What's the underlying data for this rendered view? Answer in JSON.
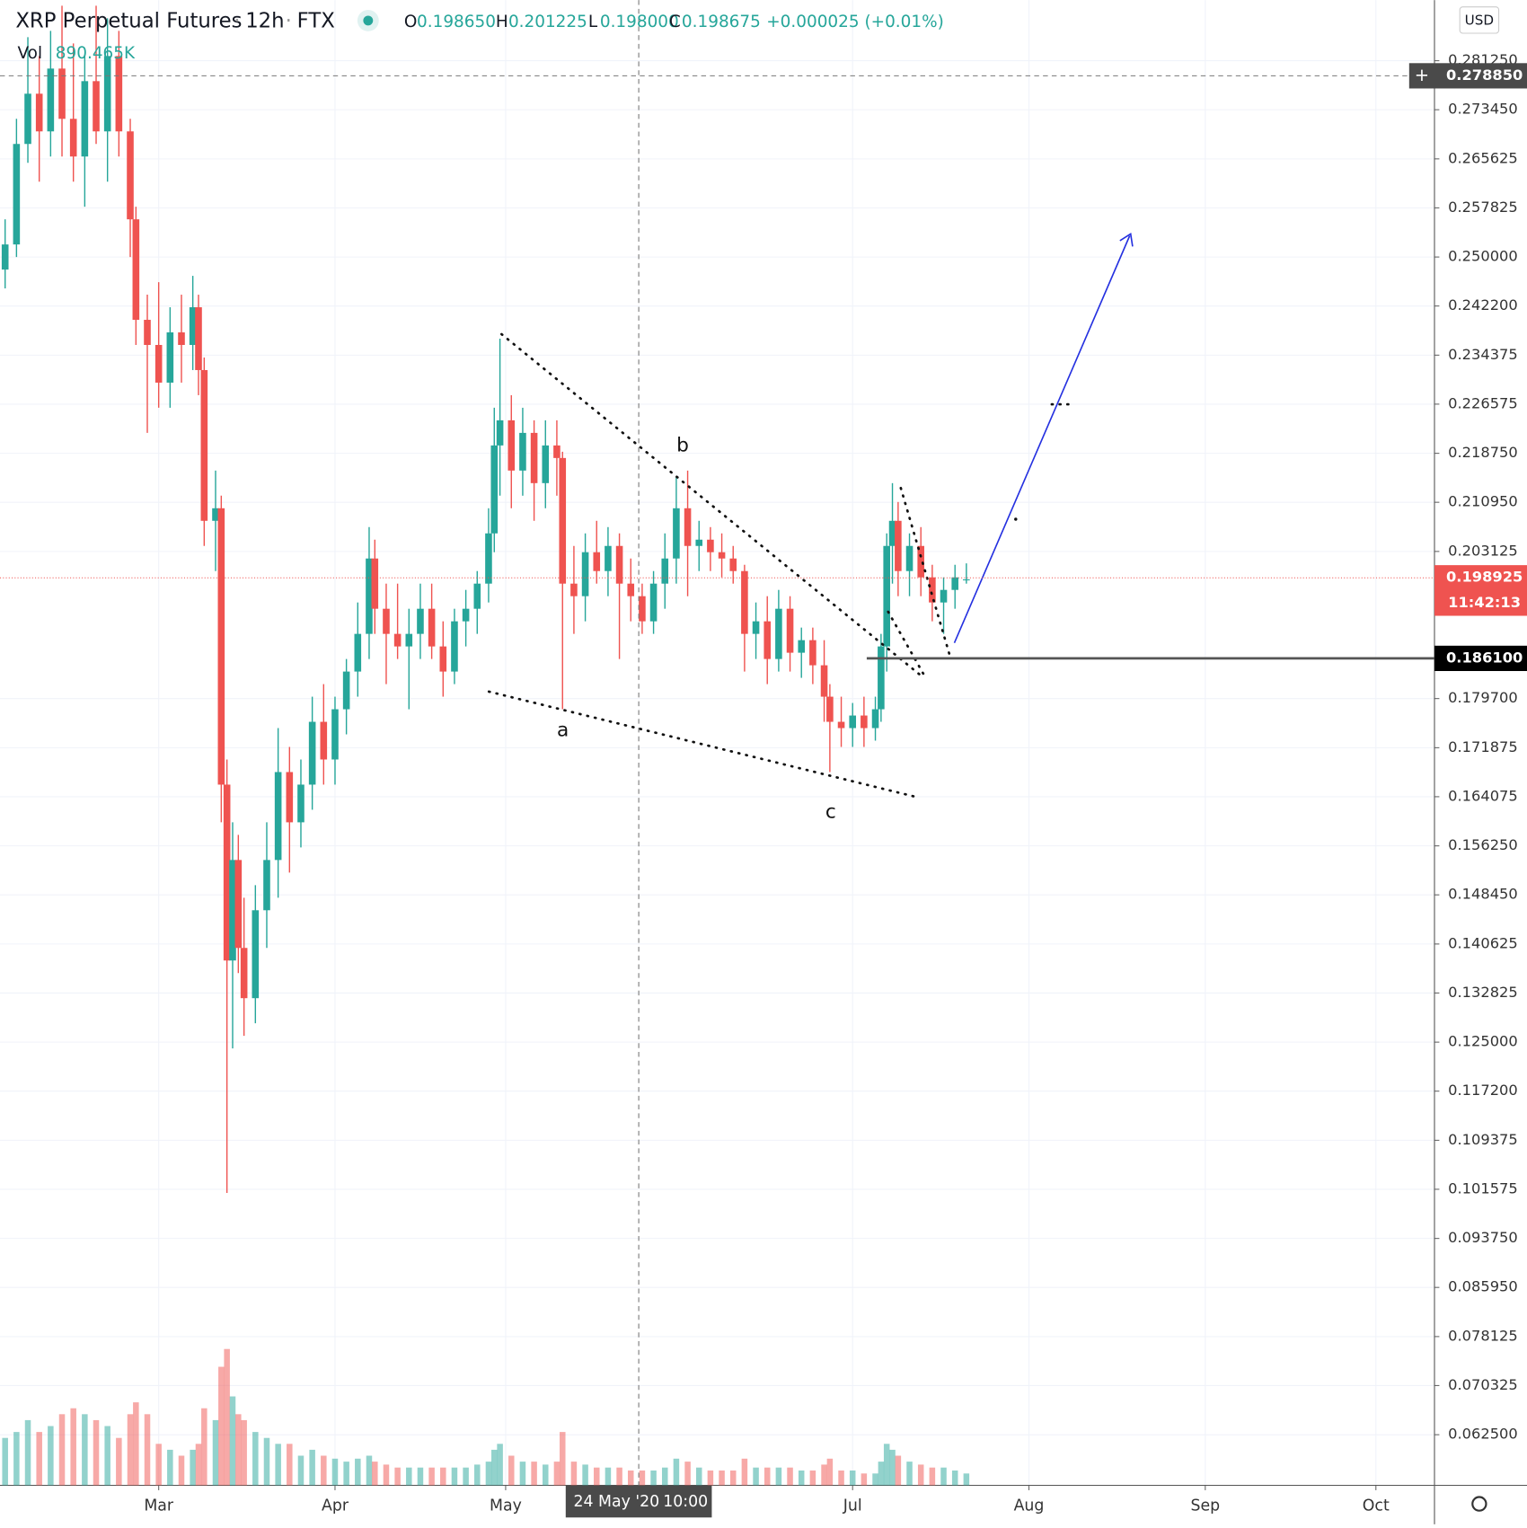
{
  "chart_data": {
    "type": "candlestick",
    "title": "XRP Perpetual Futures",
    "interval": "12h",
    "exchange": "FTX",
    "ohlc": [
      {
        "label": "O",
        "value": "0.198650"
      },
      {
        "label": "H",
        "value": "0.201225"
      },
      {
        "label": "L",
        "value": "0.198000"
      },
      {
        "label": "C",
        "value": "0.198675"
      }
    ],
    "change": "+0.000025 (+0.01%)",
    "volume_label": "Vol",
    "volume_value": "890.465K",
    "currency": "USD",
    "up_color": "#26a69a",
    "down_color": "#ef5350",
    "grid": true,
    "xlim": [
      33.1,
      285.3
    ],
    "xticks": [
      {
        "value": 61,
        "label": "Mar"
      },
      {
        "value": 92,
        "label": "Apr"
      },
      {
        "value": 122,
        "label": "May"
      },
      {
        "value": 183,
        "label": "Jul"
      },
      {
        "value": 214,
        "label": "Aug"
      },
      {
        "value": 245,
        "label": "Sep"
      },
      {
        "value": 275,
        "label": "Oct"
      }
    ],
    "ylim": [
      0.05444,
      0.2909
    ],
    "yticks": [
      {
        "value": 0.0625,
        "label": "0.062500"
      },
      {
        "value": 0.070325,
        "label": "0.070325"
      },
      {
        "value": 0.078125,
        "label": "0.078125"
      },
      {
        "value": 0.08595,
        "label": "0.085950"
      },
      {
        "value": 0.09375,
        "label": "0.093750"
      },
      {
        "value": 0.101575,
        "label": "0.101575"
      },
      {
        "value": 0.109375,
        "label": "0.109375"
      },
      {
        "value": 0.1172,
        "label": "0.117200"
      },
      {
        "value": 0.125,
        "label": "0.125000"
      },
      {
        "value": 0.132825,
        "label": "0.132825"
      },
      {
        "value": 0.140625,
        "label": "0.140625"
      },
      {
        "value": 0.14845,
        "label": "0.148450"
      },
      {
        "value": 0.15625,
        "label": "0.156250"
      },
      {
        "value": 0.164075,
        "label": "0.164075"
      },
      {
        "value": 0.171875,
        "label": "0.171875"
      },
      {
        "value": 0.1797,
        "label": "0.179700"
      },
      {
        "value": 0.203125,
        "label": "0.203125"
      },
      {
        "value": 0.21095,
        "label": "0.210950"
      },
      {
        "value": 0.21875,
        "label": "0.218750"
      },
      {
        "value": 0.226575,
        "label": "0.226575"
      },
      {
        "value": 0.234375,
        "label": "0.234375"
      },
      {
        "value": 0.2422,
        "label": "0.242200"
      },
      {
        "value": 0.25,
        "label": "0.250000"
      },
      {
        "value": 0.257825,
        "label": "0.257825"
      },
      {
        "value": 0.265625,
        "label": "0.265625"
      },
      {
        "value": 0.27345,
        "label": "0.273450"
      },
      {
        "value": 0.28125,
        "label": "0.281250"
      }
    ],
    "crosshair": {
      "x": 145.4,
      "date_label": "24 May '20",
      "time_label": "10:00",
      "y": 0.27885,
      "y_label": "0.278850"
    },
    "last_price": {
      "value": 0.198925,
      "label": "0.198925",
      "countdown": "11:42:13"
    },
    "level": {
      "value": 0.1861,
      "label": "0.186100"
    },
    "annotations": [
      "a",
      "b",
      "c"
    ],
    "x": [
      34,
      36,
      38,
      40,
      42,
      44,
      46,
      48,
      50,
      52,
      54,
      56,
      57,
      59,
      61,
      63,
      65,
      67,
      68,
      69,
      71,
      72,
      73,
      74,
      75,
      76,
      78,
      80,
      82,
      84,
      86,
      88,
      90,
      92,
      94,
      96,
      98,
      99,
      101,
      103,
      105,
      107,
      109,
      111,
      113,
      115,
      117,
      119,
      120,
      121,
      123,
      125,
      127,
      129,
      131,
      132,
      134,
      136,
      138,
      140,
      142,
      144,
      146,
      148,
      150,
      152,
      154,
      156,
      158,
      160,
      162,
      164,
      166,
      168,
      170,
      172,
      174,
      176,
      178,
      179,
      181,
      183,
      185,
      187,
      188,
      189,
      190,
      191,
      193,
      195,
      197,
      199,
      201,
      203
    ],
    "open": [
      0.248,
      0.252,
      0.268,
      0.276,
      0.27,
      0.28,
      0.272,
      0.266,
      0.278,
      0.27,
      0.282,
      0.27,
      0.256,
      0.24,
      0.236,
      0.23,
      0.238,
      0.236,
      0.242,
      0.232,
      0.208,
      0.21,
      0.166,
      0.138,
      0.154,
      0.14,
      0.132,
      0.146,
      0.154,
      0.168,
      0.16,
      0.166,
      0.176,
      0.17,
      0.178,
      0.184,
      0.19,
      0.202,
      0.194,
      0.19,
      0.188,
      0.19,
      0.194,
      0.188,
      0.184,
      0.192,
      0.194,
      0.198,
      0.206,
      0.22,
      0.224,
      0.216,
      0.222,
      0.214,
      0.22,
      0.218,
      0.198,
      0.196,
      0.203,
      0.2,
      0.204,
      0.198,
      0.196,
      0.192,
      0.198,
      0.202,
      0.21,
      0.204,
      0.205,
      0.203,
      0.202,
      0.2,
      0.19,
      0.192,
      0.186,
      0.194,
      0.187,
      0.189,
      0.185,
      0.18,
      0.176,
      0.175,
      0.177,
      0.175,
      0.178,
      0.188,
      0.204,
      0.208,
      0.2,
      0.204,
      0.199,
      0.195,
      0.197,
      0.19865
    ],
    "high": [
      0.256,
      0.272,
      0.285,
      0.282,
      0.286,
      0.29,
      0.284,
      0.282,
      0.29,
      0.288,
      0.286,
      0.272,
      0.258,
      0.244,
      0.246,
      0.242,
      0.244,
      0.247,
      0.244,
      0.234,
      0.216,
      0.212,
      0.17,
      0.16,
      0.158,
      0.148,
      0.15,
      0.16,
      0.175,
      0.172,
      0.17,
      0.18,
      0.182,
      0.18,
      0.186,
      0.195,
      0.207,
      0.205,
      0.198,
      0.198,
      0.194,
      0.198,
      0.198,
      0.192,
      0.194,
      0.197,
      0.2,
      0.21,
      0.226,
      0.237,
      0.228,
      0.226,
      0.224,
      0.224,
      0.224,
      0.219,
      0.204,
      0.206,
      0.208,
      0.207,
      0.206,
      0.202,
      0.198,
      0.2,
      0.206,
      0.215,
      0.216,
      0.208,
      0.207,
      0.206,
      0.204,
      0.201,
      0.195,
      0.196,
      0.197,
      0.196,
      0.191,
      0.191,
      0.189,
      0.182,
      0.18,
      0.179,
      0.18,
      0.18,
      0.19,
      0.206,
      0.214,
      0.211,
      0.206,
      0.207,
      0.201,
      0.199,
      0.201,
      0.201225
    ],
    "low": [
      0.245,
      0.25,
      0.265,
      0.262,
      0.266,
      0.266,
      0.262,
      0.258,
      0.268,
      0.262,
      0.266,
      0.25,
      0.236,
      0.222,
      0.226,
      0.226,
      0.23,
      0.232,
      0.228,
      0.204,
      0.2,
      0.16,
      0.101,
      0.124,
      0.136,
      0.126,
      0.128,
      0.14,
      0.148,
      0.152,
      0.156,
      0.162,
      0.166,
      0.166,
      0.174,
      0.18,
      0.186,
      0.19,
      0.182,
      0.186,
      0.178,
      0.186,
      0.186,
      0.18,
      0.182,
      0.188,
      0.19,
      0.195,
      0.203,
      0.212,
      0.21,
      0.212,
      0.208,
      0.21,
      0.212,
      0.178,
      0.19,
      0.192,
      0.198,
      0.196,
      0.186,
      0.192,
      0.19,
      0.19,
      0.194,
      0.198,
      0.196,
      0.2,
      0.2,
      0.199,
      0.198,
      0.184,
      0.186,
      0.182,
      0.184,
      0.184,
      0.183,
      0.182,
      0.176,
      0.168,
      0.172,
      0.172,
      0.172,
      0.173,
      0.176,
      0.184,
      0.198,
      0.196,
      0.196,
      0.196,
      0.192,
      0.19,
      0.194,
      0.198
    ],
    "close": [
      0.252,
      0.268,
      0.276,
      0.27,
      0.28,
      0.272,
      0.266,
      0.278,
      0.27,
      0.282,
      0.27,
      0.256,
      0.24,
      0.236,
      0.23,
      0.238,
      0.236,
      0.242,
      0.232,
      0.208,
      0.21,
      0.166,
      0.138,
      0.154,
      0.14,
      0.132,
      0.146,
      0.154,
      0.168,
      0.16,
      0.166,
      0.176,
      0.17,
      0.178,
      0.184,
      0.19,
      0.202,
      0.194,
      0.19,
      0.188,
      0.19,
      0.194,
      0.188,
      0.184,
      0.192,
      0.194,
      0.198,
      0.206,
      0.22,
      0.224,
      0.216,
      0.222,
      0.214,
      0.22,
      0.218,
      0.198,
      0.196,
      0.203,
      0.2,
      0.204,
      0.198,
      0.196,
      0.192,
      0.198,
      0.202,
      0.21,
      0.204,
      0.205,
      0.203,
      0.202,
      0.2,
      0.19,
      0.192,
      0.186,
      0.194,
      0.187,
      0.189,
      0.185,
      0.18,
      0.176,
      0.175,
      0.177,
      0.175,
      0.178,
      0.188,
      0.204,
      0.208,
      0.2,
      0.204,
      0.199,
      0.195,
      0.197,
      0.199,
      0.198675
    ],
    "volume": [
      80,
      90,
      110,
      90,
      100,
      120,
      130,
      120,
      110,
      100,
      80,
      120,
      140,
      120,
      70,
      60,
      50,
      60,
      70,
      130,
      110,
      200,
      230,
      150,
      120,
      110,
      90,
      80,
      70,
      70,
      50,
      60,
      50,
      45,
      40,
      45,
      50,
      40,
      35,
      30,
      30,
      30,
      30,
      30,
      30,
      30,
      35,
      40,
      60,
      70,
      50,
      40,
      40,
      35,
      40,
      90,
      40,
      35,
      30,
      30,
      30,
      25,
      25,
      25,
      30,
      45,
      40,
      30,
      25,
      25,
      25,
      45,
      30,
      30,
      30,
      30,
      25,
      25,
      35,
      45,
      25,
      25,
      20,
      20,
      40,
      70,
      60,
      50,
      40,
      35,
      30,
      30,
      25,
      20
    ]
  }
}
